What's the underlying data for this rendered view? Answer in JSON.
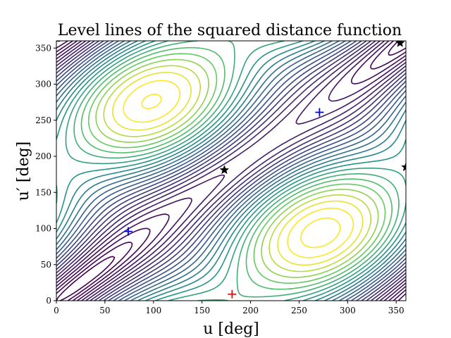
{
  "chart_data": {
    "type": "contour",
    "title": "Level lines of the squared distance function",
    "xlabel": "u [deg]",
    "ylabel": "u′ [deg]",
    "xlim": [
      0,
      360
    ],
    "ylim": [
      0,
      360
    ],
    "xticks": [
      0,
      50,
      100,
      150,
      200,
      250,
      300,
      350
    ],
    "yticks": [
      0,
      50,
      100,
      150,
      200,
      250,
      300,
      350
    ],
    "colormap": [
      "#440154",
      "#3b528b",
      "#21918c",
      "#5ec962",
      "#fde725"
    ],
    "levels": [
      0.02,
      0.05,
      0.09,
      0.14,
      0.2,
      0.27,
      0.35,
      0.44,
      0.54,
      0.65,
      0.77,
      0.9,
      1.04,
      1.19,
      1.35,
      1.52,
      1.7,
      1.89,
      2.09,
      2.3,
      2.52,
      2.75,
      2.99,
      3.24,
      3.5,
      3.77,
      4.05,
      4.34,
      4.64,
      4.95,
      5.27,
      5.6,
      5.94,
      6.29,
      6.65,
      7.02,
      7.4,
      7.79,
      8.19,
      8.6
    ],
    "markers": [
      {
        "name": "min-left",
        "kind": "plus",
        "color": "#0000ff",
        "x": 74,
        "y": 96
      },
      {
        "name": "min-right",
        "kind": "plus",
        "color": "#0000ff",
        "x": 271,
        "y": 261
      },
      {
        "name": "max-bottom",
        "kind": "plus",
        "color": "#ff0000",
        "x": 181,
        "y": 9
      },
      {
        "name": "saddle-center",
        "kind": "star",
        "color": "#000000",
        "x": 173,
        "y": 181
      },
      {
        "name": "saddle-top-right",
        "kind": "star",
        "color": "#000000",
        "x": 354,
        "y": 357
      },
      {
        "name": "saddle-right-edge",
        "kind": "star",
        "color": "#000000",
        "x": 360,
        "y": 185
      }
    ]
  }
}
